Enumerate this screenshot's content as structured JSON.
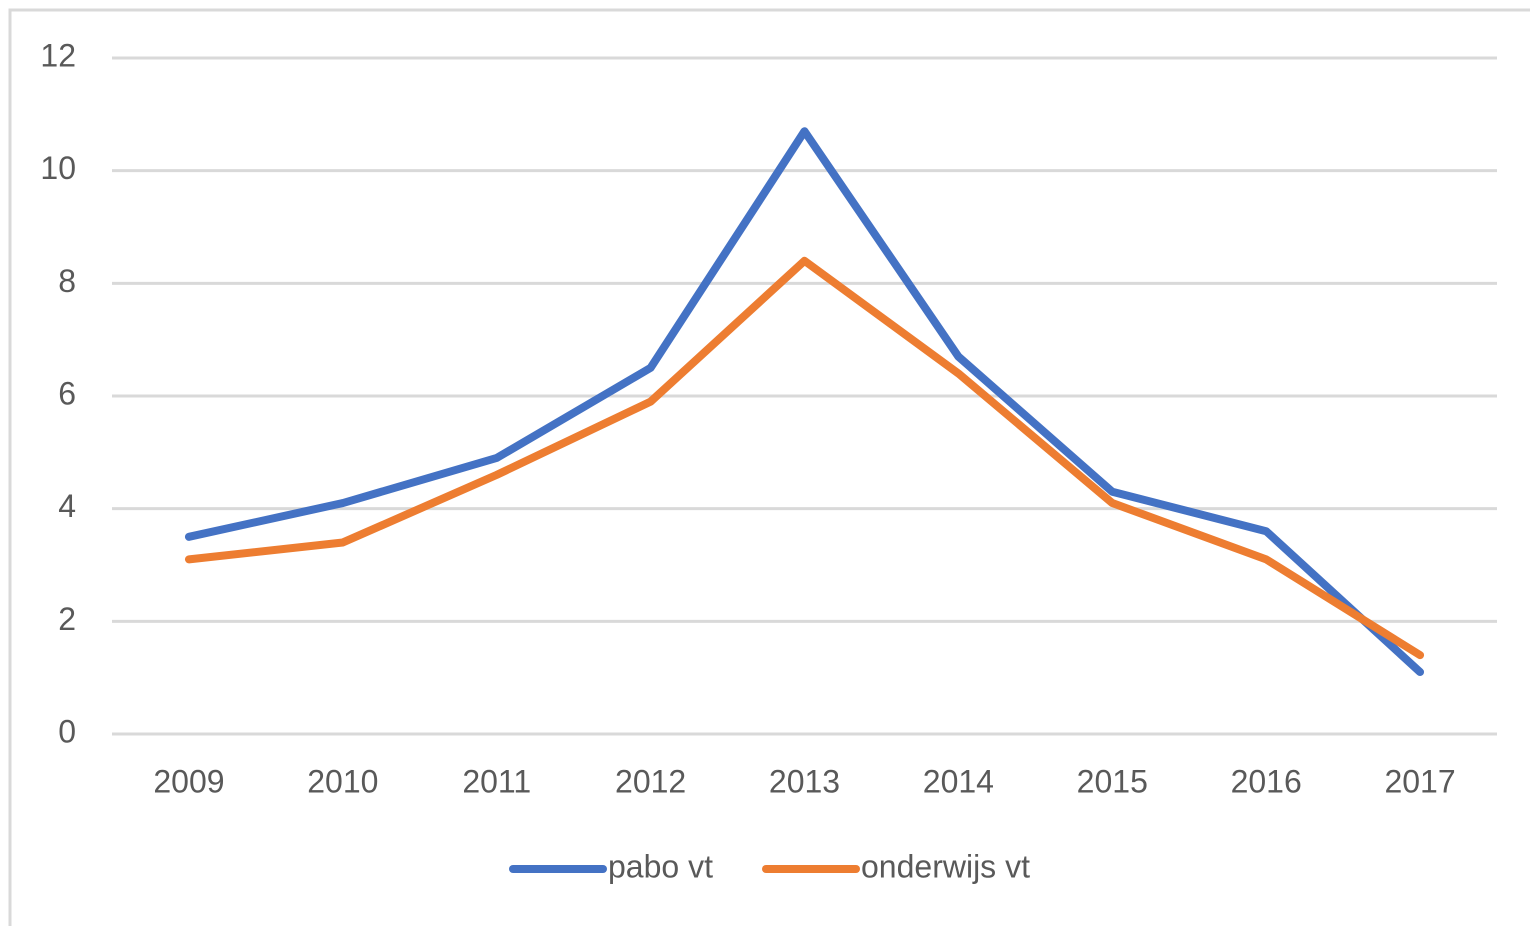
{
  "chart_data": {
    "type": "line",
    "categories": [
      "2009",
      "2010",
      "2011",
      "2012",
      "2013",
      "2014",
      "2015",
      "2016",
      "2017"
    ],
    "series": [
      {
        "name": "pabo vt",
        "color": "#4472c4",
        "values": [
          3.5,
          4.1,
          4.9,
          6.5,
          10.7,
          6.7,
          4.3,
          3.6,
          1.1
        ]
      },
      {
        "name": "onderwijs vt",
        "color": "#ed7d31",
        "values": [
          3.1,
          3.4,
          4.6,
          5.9,
          8.4,
          6.4,
          4.1,
          3.1,
          1.4
        ]
      }
    ],
    "ylim": [
      0,
      12
    ],
    "yticks": [
      0,
      2,
      4,
      6,
      8,
      10,
      12
    ],
    "grid": true,
    "legend": "bottom"
  }
}
